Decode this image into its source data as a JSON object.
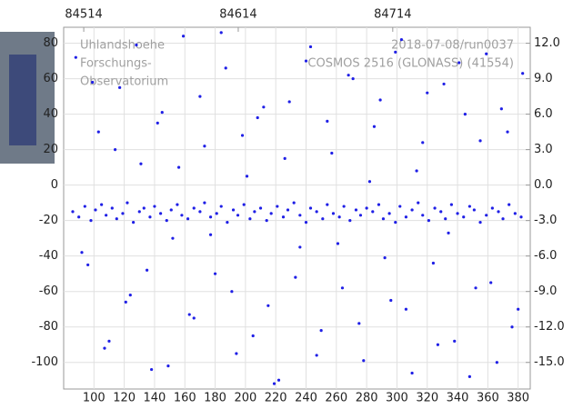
{
  "chart_data": {
    "type": "scatter",
    "annotations": [
      "Uhlandshoehe",
      "Forschungs-",
      "Observatorium",
      "2018-07-08/run0037",
      "COSMOS 2516 (GLONASS) (41554)"
    ],
    "color": "#1f1fe6",
    "grid": true,
    "xlim": [
      80,
      388
    ],
    "xticks": [
      100,
      120,
      140,
      160,
      180,
      200,
      220,
      240,
      260,
      280,
      300,
      320,
      340,
      360,
      380
    ],
    "x2lim": [
      84501,
      84803
    ],
    "x2ticks": [
      84514,
      84614,
      84714
    ],
    "ylim": [
      -115,
      89
    ],
    "yticks": [
      80,
      60,
      40,
      20,
      0,
      -20,
      -40,
      -60,
      -80,
      -100
    ],
    "y2lim": [
      -17.25,
      13.35
    ],
    "y2ticks": [
      {
        "value": 12,
        "label": "12.0"
      },
      {
        "value": 9,
        "label": "9.0"
      },
      {
        "value": 6,
        "label": "6.0"
      },
      {
        "value": 3,
        "label": "3.0"
      },
      {
        "value": 0,
        "label": "0.0"
      },
      {
        "value": -3,
        "label": "-3.0"
      },
      {
        "value": -6,
        "label": "-6.0"
      },
      {
        "value": -9,
        "label": "-9.0"
      },
      {
        "value": -12,
        "label": "-12.0"
      },
      {
        "value": -15,
        "label": "-15.0"
      }
    ],
    "x": [
      86,
      90,
      94,
      98,
      101,
      105,
      108,
      112,
      115,
      119,
      122,
      126,
      130,
      133,
      137,
      140,
      144,
      148,
      151,
      155,
      158,
      162,
      166,
      170,
      173,
      177,
      181,
      184,
      188,
      192,
      195,
      199,
      203,
      206,
      210,
      214,
      217,
      221,
      225,
      228,
      232,
      236,
      240,
      243,
      247,
      251,
      254,
      258,
      262,
      265,
      269,
      273,
      276,
      280,
      284,
      288,
      291,
      295,
      299,
      302,
      306,
      310,
      314,
      317,
      321,
      325,
      329,
      332,
      336,
      340,
      344,
      348,
      351,
      355,
      359,
      363,
      367,
      370,
      374,
      378,
      382,
      88,
      96,
      103,
      110,
      117,
      124,
      131,
      138,
      145,
      152,
      159,
      166,
      173,
      180,
      187,
      194,
      201,
      208,
      215,
      222,
      229,
      236,
      243,
      250,
      257,
      264,
      271,
      278,
      285,
      292,
      299,
      306,
      313,
      320,
      327,
      334,
      341,
      348,
      355,
      362,
      369,
      376,
      383,
      92,
      99,
      107,
      114,
      121,
      128,
      135,
      142,
      149,
      156,
      163,
      170,
      177,
      184,
      191,
      198,
      205,
      212,
      219,
      226,
      233,
      240,
      247,
      254,
      261,
      268,
      275,
      282,
      289,
      296,
      303,
      310,
      317,
      324,
      331,
      338,
      345,
      352,
      359,
      366,
      373,
      380
    ],
    "values": [
      -15,
      -18,
      -12,
      -20,
      -14,
      -11,
      -17,
      -13,
      -19,
      -16,
      -10,
      -21,
      -15,
      -13,
      -18,
      -12,
      -16,
      -20,
      -14,
      -11,
      -17,
      -19,
      -13,
      -15,
      -10,
      -18,
      -16,
      -12,
      -21,
      -14,
      -17,
      -11,
      -19,
      -15,
      -13,
      -20,
      -16,
      -12,
      -18,
      -14,
      -10,
      -17,
      -21,
      -13,
      -15,
      -19,
      -11,
      -16,
      -18,
      -12,
      -20,
      -14,
      -17,
      -13,
      -15,
      -11,
      -19,
      -16,
      -21,
      -12,
      -18,
      -14,
      -10,
      -17,
      -20,
      -13,
      -15,
      -19,
      -11,
      -16,
      -18,
      -12,
      -14,
      -21,
      -17,
      -13,
      -15,
      -19,
      -11,
      -16,
      -18,
      72,
      -45,
      30,
      -88,
      55,
      -62,
      12,
      -104,
      41,
      -30,
      84,
      -75,
      22,
      -50,
      66,
      -95,
      5,
      38,
      -68,
      -110,
      47,
      -35,
      78,
      -82,
      18,
      -58,
      60,
      -99,
      33,
      -41,
      75,
      -70,
      8,
      52,
      -90,
      -27,
      69,
      -108,
      25,
      -55,
      43,
      -80,
      63,
      -38,
      58,
      -92,
      20,
      -66,
      79,
      -48,
      35,
      -102,
      10,
      -73,
      50,
      -28,
      86,
      -60,
      28,
      -85,
      44,
      -112,
      15,
      -52,
      70,
      -96,
      36,
      -33,
      62,
      -78,
      2,
      48,
      -65,
      82,
      -106,
      24,
      -44,
      57,
      -88,
      40,
      -58,
      74,
      -100,
      30,
      -70
    ]
  }
}
